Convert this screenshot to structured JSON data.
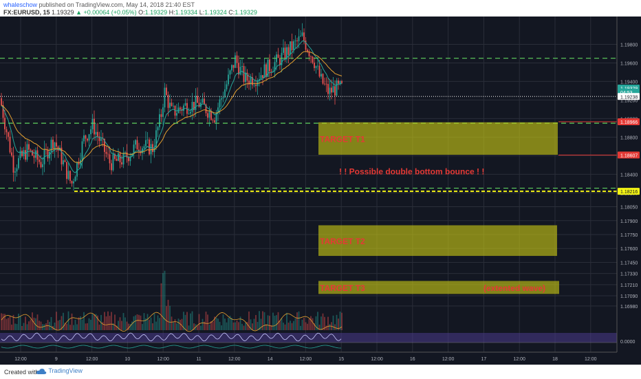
{
  "header": {
    "author": "whaleschow",
    "published_text": "published on TradingView.com, May 14, 2018 21:40 EST",
    "symbol": "FX:EURUSD, 15",
    "last_price": "1.19329",
    "change": "▲ +0.00064 (+0.05%)",
    "open_label": "O:",
    "open": "1.19329",
    "high_label": "H:",
    "high": "1.19334",
    "low_label": "L:",
    "low": "1.19324",
    "close_label": "C:",
    "close": "1.19329"
  },
  "footer": {
    "created_with": "Created with",
    "brand": "TradingView",
    "logo_icon": "tradingview-cloud-icon"
  },
  "colors": {
    "background": "#131722",
    "grid": "#2a2e39",
    "bull": "#26a69a",
    "bear": "#ef5350",
    "ema_fast": "#26a69a",
    "ema_slow": "#e6a130",
    "support_line": "#f5f514",
    "level_line": "#5fd35f",
    "target_zone": "#c8c814",
    "target_text": "#e53935"
  },
  "chart_data": {
    "type": "candlestick",
    "symbol": "FX:EURUSD",
    "timeframe": "15",
    "y_range": [
      1.1669,
      1.201
    ],
    "y_ticks": [
      "1.19800",
      "1.19600",
      "1.19400",
      "1.19200",
      "1.19000",
      "1.18800",
      "1.18600",
      "1.18400",
      "1.18200",
      "1.18050",
      "1.17900",
      "1.17750",
      "1.17600",
      "1.17450",
      "1.17330",
      "1.17210",
      "1.17090",
      "1.16980"
    ],
    "x_ticks": [
      "12:00",
      "9",
      "12:00",
      "10",
      "12:00",
      "11",
      "12:00",
      "14",
      "12:00",
      "15",
      "12:00",
      "16",
      "12:00",
      "17",
      "12:00",
      "18",
      "12:00"
    ],
    "price_path": {
      "start": 1.1922,
      "waypoints": [
        [
          0,
          1.1922
        ],
        [
          20,
          1.1848
        ],
        [
          40,
          1.1866
        ],
        [
          60,
          1.1852
        ],
        [
          78,
          1.1878
        ],
        [
          90,
          1.1856
        ],
        [
          104,
          1.1829
        ],
        [
          122,
          1.1878
        ],
        [
          135,
          1.1893
        ],
        [
          160,
          1.1852
        ],
        [
          180,
          1.1856
        ],
        [
          200,
          1.1872
        ],
        [
          222,
          1.1868
        ],
        [
          234,
          1.1902
        ],
        [
          239,
          1.193
        ],
        [
          250,
          1.1906
        ],
        [
          270,
          1.1914
        ],
        [
          290,
          1.1916
        ],
        [
          312,
          1.1903
        ],
        [
          330,
          1.1938
        ],
        [
          342,
          1.1964
        ],
        [
          356,
          1.1942
        ],
        [
          372,
          1.1944
        ],
        [
          388,
          1.1954
        ],
        [
          404,
          1.1962
        ],
        [
          412,
          1.1968
        ],
        [
          426,
          1.1978
        ],
        [
          440,
          1.1988
        ],
        [
          446,
          1.1978
        ],
        [
          456,
          1.1964
        ],
        [
          466,
          1.1942
        ],
        [
          478,
          1.1928
        ],
        [
          486,
          1.1932
        ],
        [
          497,
          1.1933
        ]
      ]
    },
    "price_labels": [
      {
        "text": "1.19329",
        "price": 1.19329,
        "bg": "#26a69a"
      },
      {
        "text": "04:53",
        "price": 1.19285,
        "bg": "#26a69a"
      },
      {
        "text": "1.19238",
        "price": 1.19238,
        "bg": "#ffffff",
        "fg": "#131722"
      },
      {
        "text": "1.18966",
        "price": 1.18966,
        "bg": "#e53935"
      },
      {
        "text": "1.18607",
        "price": 1.18607,
        "bg": "#e53935"
      },
      {
        "text": "1.18216",
        "price": 1.18216,
        "bg": "#f5f514",
        "fg": "#131722"
      }
    ],
    "horizontal_levels": [
      {
        "price": 1.1965,
        "style": "dashed",
        "color": "#5fd35f"
      },
      {
        "price": 1.1895,
        "style": "dashed",
        "color": "#5fd35f"
      },
      {
        "price": 1.1825,
        "style": "dashed",
        "color": "#5fd35f"
      },
      {
        "price": 1.18216,
        "style": "dashed",
        "color": "#f5f514"
      },
      {
        "price": 1.19238,
        "style": "dotted",
        "color": "#d0d0d0"
      }
    ],
    "zones": [
      {
        "label": "TARGET T1",
        "top": 1.1896,
        "bottom": 1.1861,
        "note": ""
      },
      {
        "label": "TARGET T2",
        "top": 1.1785,
        "bottom": 1.1752,
        "note": ""
      },
      {
        "label": "TARGET T3",
        "top": 1.1725,
        "bottom": 1.1711,
        "note": "(extented wave)"
      }
    ],
    "annotation": "! !  Possible double bottom bounce  ! !",
    "rsi_axis_label": "0.0000"
  }
}
